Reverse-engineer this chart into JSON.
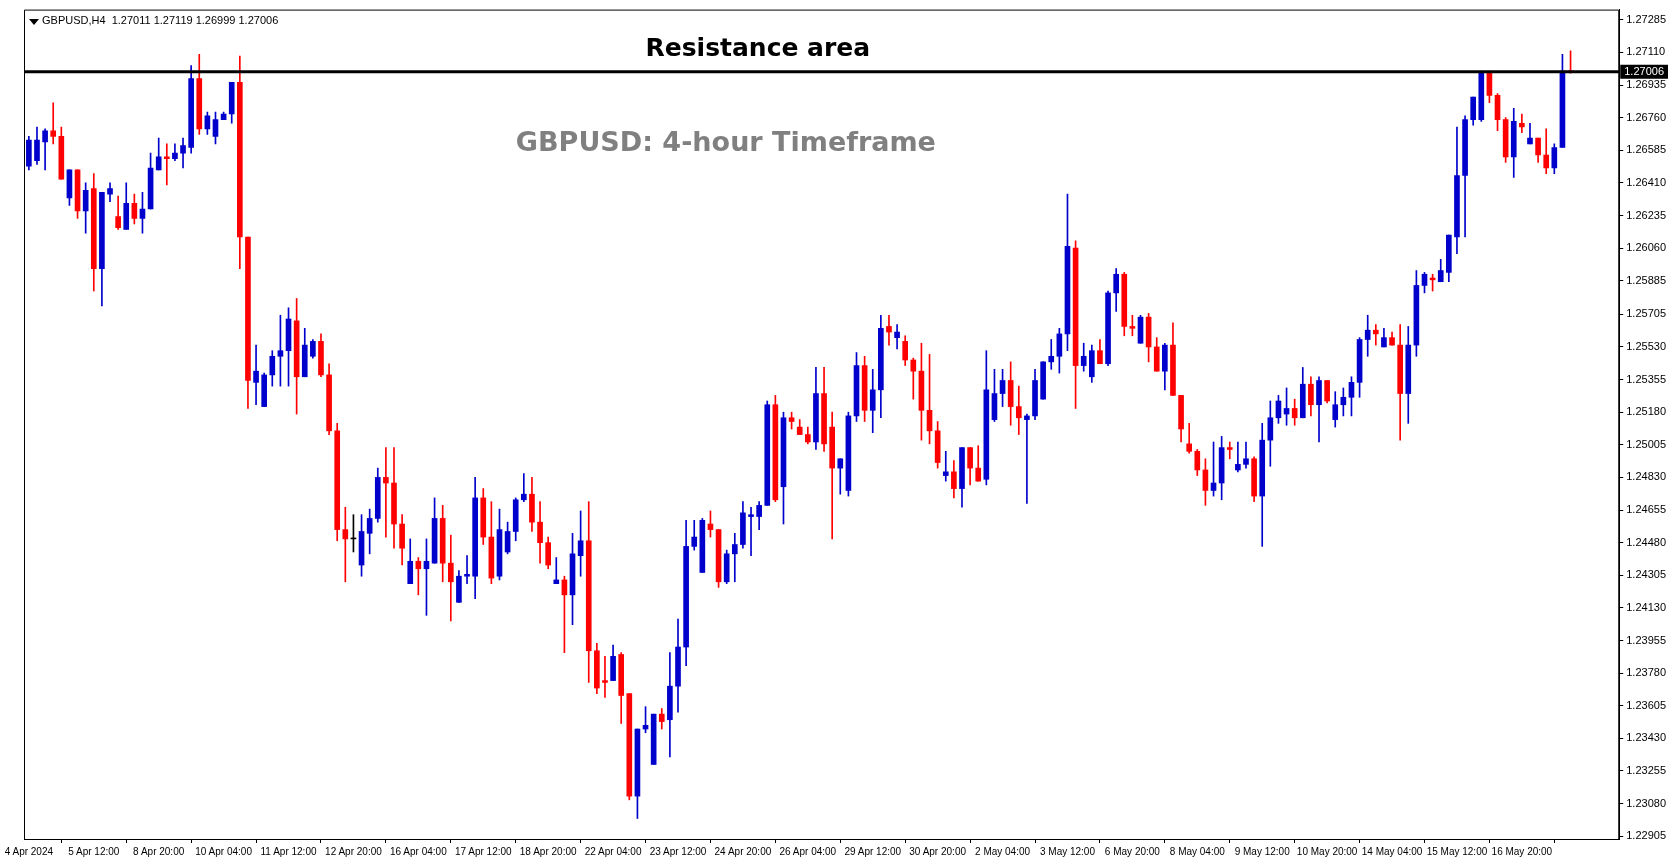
{
  "chart_data": {
    "type": "candlestick",
    "title": "GBPUSD: 4-hour Timeframe",
    "subtitle": "GBPUSD,H4  1.27011 1.27119 1.26999 1.27006",
    "categories": [
      "4 Apr 2024",
      null,
      null,
      null,
      null,
      null,
      null,
      null,
      "5 Apr 12:00",
      null,
      null,
      null,
      null,
      null,
      null,
      null,
      "8 Apr 20:00",
      null,
      null,
      null,
      null,
      null,
      null,
      null,
      "10 Apr 04:00",
      null,
      null,
      null,
      null,
      null,
      null,
      null,
      "11 Apr 12:00",
      null,
      null,
      null,
      null,
      null,
      null,
      null,
      "12 Apr 20:00",
      null,
      null,
      null,
      null,
      null,
      null,
      null,
      "16 Apr 04:00",
      null,
      null,
      null,
      null,
      null,
      null,
      null,
      "17 Apr 12:00",
      null,
      null,
      null,
      null,
      null,
      null,
      null,
      "18 Apr 20:00",
      null,
      null,
      null,
      null,
      null,
      null,
      null,
      "22 Apr 04:00",
      null,
      null,
      null,
      null,
      null,
      null,
      null,
      "23 Apr 12:00",
      null,
      null,
      null,
      null,
      null,
      null,
      null,
      "24 Apr 20:00",
      null,
      null,
      null,
      null,
      null,
      null,
      null,
      "26 Apr 04:00",
      null,
      null,
      null,
      null,
      null,
      null,
      null,
      "29 Apr 12:00",
      null,
      null,
      null,
      null,
      null,
      null,
      null,
      "30 Apr 20:00",
      null,
      null,
      null,
      null,
      null,
      null,
      null,
      "2 May 04:00",
      null,
      null,
      null,
      null,
      null,
      null,
      null,
      "3 May 12:00",
      null,
      null,
      null,
      null,
      null,
      null,
      null,
      "6 May 20:00",
      null,
      null,
      null,
      null,
      null,
      null,
      null,
      "8 May 04:00",
      null,
      null,
      null,
      null,
      null,
      null,
      null,
      "9 May 12:00",
      null,
      null,
      null,
      null,
      null,
      null,
      null,
      "10 May 20:00",
      null,
      null,
      null,
      null,
      null,
      null,
      null,
      "14 May 04:00",
      null,
      null,
      null,
      null,
      null,
      null,
      null,
      "15 May 12:00",
      null,
      null,
      null,
      null,
      null,
      null,
      null,
      "16 May 20:00",
      null,
      null,
      null,
      null,
      null,
      null
    ],
    "ohlc": [
      [
        1.265,
        1.2666,
        1.2648,
        1.2664
      ],
      [
        1.2653,
        1.2671,
        1.2651,
        1.2664
      ],
      [
        1.2663,
        1.267,
        1.2648,
        1.2669
      ],
      [
        1.2669,
        1.2684,
        1.2662,
        1.2666
      ],
      [
        1.2666,
        1.2671,
        1.2643,
        1.2643
      ],
      [
        1.2633,
        1.2648,
        1.2629,
        1.2648
      ],
      [
        1.2648,
        1.2648,
        1.2622,
        1.2626
      ],
      [
        1.2626,
        1.2641,
        1.2614,
        1.2637
      ],
      [
        1.2638,
        1.2646,
        1.2583,
        1.2595
      ],
      [
        1.2595,
        1.2636,
        1.2575,
        1.2636
      ],
      [
        1.2635,
        1.2641,
        1.2631,
        1.2638
      ],
      [
        1.2623,
        1.2634,
        1.2616,
        1.2617
      ],
      [
        1.2616,
        1.2641,
        1.2616,
        1.263
      ],
      [
        1.263,
        1.2635,
        1.2619,
        1.2622
      ],
      [
        1.2622,
        1.2636,
        1.2614,
        1.2627
      ],
      [
        1.2627,
        1.2657,
        1.2627,
        1.2649
      ],
      [
        1.2648,
        1.2665,
        1.2648,
        1.2655
      ],
      [
        1.2655,
        1.2662,
        1.264,
        1.2654
      ],
      [
        1.2654,
        1.2662,
        1.2653,
        1.2657
      ],
      [
        1.2657,
        1.2665,
        1.2649,
        1.2661
      ],
      [
        1.266,
        1.2704,
        1.2657,
        1.2697
      ],
      [
        1.2697,
        1.271,
        1.2667,
        1.267
      ],
      [
        1.267,
        1.2679,
        1.2667,
        1.2677
      ],
      [
        1.2666,
        1.2679,
        1.2662,
        1.2675
      ],
      [
        1.2675,
        1.2679,
        1.2675,
        1.2678
      ],
      [
        1.2678,
        1.2695,
        1.2673,
        1.2695
      ],
      [
        1.2695,
        1.2709,
        1.2595,
        1.2612
      ],
      [
        1.2612,
        1.2612,
        1.252,
        1.2535
      ],
      [
        1.2534,
        1.2554,
        1.2522,
        1.254
      ],
      [
        1.2521,
        1.2539,
        1.2521,
        1.2538
      ],
      [
        1.2538,
        1.2551,
        1.2532,
        1.2548
      ],
      [
        1.2548,
        1.257,
        1.2532,
        1.2551
      ],
      [
        1.2551,
        1.2574,
        1.2532,
        1.2568
      ],
      [
        1.2567,
        1.2579,
        1.2517,
        1.2537
      ],
      [
        1.2537,
        1.2563,
        1.2537,
        1.2554
      ],
      [
        1.2548,
        1.2557,
        1.2547,
        1.2556
      ],
      [
        1.2556,
        1.256,
        1.2537,
        1.2538
      ],
      [
        1.2538,
        1.2544,
        1.2506,
        1.2508
      ],
      [
        1.2508,
        1.2512,
        1.2449,
        1.2455
      ],
      [
        1.2455,
        1.2467,
        1.2427,
        1.245
      ],
      [
        1.245,
        1.2463,
        1.2443,
        1.245
      ],
      [
        1.2436,
        1.2463,
        1.243,
        1.2454
      ],
      [
        1.2453,
        1.2466,
        1.2442,
        1.2461
      ],
      [
        1.2461,
        1.2488,
        1.2459,
        1.2483
      ],
      [
        1.2483,
        1.2499,
        1.2451,
        1.248
      ],
      [
        1.248,
        1.2499,
        1.2445,
        1.2458
      ],
      [
        1.2458,
        1.2463,
        1.2436,
        1.2445
      ],
      [
        1.2426,
        1.245,
        1.2426,
        1.2438
      ],
      [
        1.2438,
        1.244,
        1.242,
        1.2434
      ],
      [
        1.2434,
        1.245,
        1.2409,
        1.2438
      ],
      [
        1.2437,
        1.2472,
        1.2437,
        1.2461
      ],
      [
        1.2461,
        1.2468,
        1.2427,
        1.2437
      ],
      [
        1.2437,
        1.2452,
        1.2406,
        1.2427
      ],
      [
        1.2416,
        1.2433,
        1.2416,
        1.243
      ],
      [
        1.243,
        1.2441,
        1.2426,
        1.2431
      ],
      [
        1.243,
        1.2483,
        1.2418,
        1.2472
      ],
      [
        1.2472,
        1.2477,
        1.2447,
        1.2451
      ],
      [
        1.2451,
        1.247,
        1.2426,
        1.2429
      ],
      [
        1.243,
        1.2466,
        1.2428,
        1.2455
      ],
      [
        1.2443,
        1.2459,
        1.2442,
        1.2454
      ],
      [
        1.2454,
        1.2472,
        1.2449,
        1.2471
      ],
      [
        1.2471,
        1.2485,
        1.247,
        1.2474
      ],
      [
        1.2474,
        1.2483,
        1.2454,
        1.2459
      ],
      [
        1.2459,
        1.247,
        1.2437,
        1.2448
      ],
      [
        1.2448,
        1.2451,
        1.2434,
        1.2436
      ],
      [
        1.2426,
        1.244,
        1.2426,
        1.2428
      ],
      [
        1.2428,
        1.243,
        1.2389,
        1.242
      ],
      [
        1.242,
        1.2453,
        1.2404,
        1.2442
      ],
      [
        1.2441,
        1.2465,
        1.243,
        1.2449
      ],
      [
        1.2449,
        1.247,
        1.2373,
        1.239
      ],
      [
        1.239,
        1.2394,
        1.2367,
        1.237
      ],
      [
        1.2374,
        1.2387,
        1.2365,
        1.2373
      ],
      [
        1.2374,
        1.2393,
        1.2374,
        1.2387
      ],
      [
        1.2388,
        1.2389,
        1.2351,
        1.2366
      ],
      [
        1.2367,
        1.2367,
        1.231,
        1.2312
      ],
      [
        1.2312,
        1.2348,
        1.23,
        1.2348
      ],
      [
        1.2348,
        1.236,
        1.2346,
        1.235
      ],
      [
        1.2329,
        1.2356,
        1.2329,
        1.2356
      ],
      [
        1.2356,
        1.2359,
        1.2348,
        1.2352
      ],
      [
        1.2353,
        1.2389,
        1.2333,
        1.2371
      ],
      [
        1.2371,
        1.2407,
        1.2357,
        1.2392
      ],
      [
        1.2392,
        1.246,
        1.2382,
        1.2446
      ],
      [
        1.2446,
        1.246,
        1.2444,
        1.2451
      ],
      [
        1.2432,
        1.2461,
        1.2432,
        1.246
      ],
      [
        1.2458,
        1.2465,
        1.2451,
        1.2455
      ],
      [
        1.2455,
        1.2455,
        1.2424,
        1.2427
      ],
      [
        1.2427,
        1.2444,
        1.2426,
        1.2442
      ],
      [
        1.2442,
        1.2453,
        1.2427,
        1.2447
      ],
      [
        1.2447,
        1.247,
        1.2445,
        1.2464
      ],
      [
        1.2462,
        1.2467,
        1.2441,
        1.2463
      ],
      [
        1.2462,
        1.247,
        1.2455,
        1.2468
      ],
      [
        1.2468,
        1.2524,
        1.2468,
        1.2522
      ],
      [
        1.2522,
        1.2527,
        1.247,
        1.2471
      ],
      [
        1.2478,
        1.2518,
        1.2458,
        1.2515
      ],
      [
        1.2515,
        1.2518,
        1.2509,
        1.2513
      ],
      [
        1.251,
        1.2514,
        1.2506,
        1.2506
      ],
      [
        1.2506,
        1.251,
        1.2501,
        1.2502
      ],
      [
        1.2502,
        1.2542,
        1.2498,
        1.2528
      ],
      [
        1.2528,
        1.2542,
        1.2497,
        1.2501
      ],
      [
        1.251,
        1.2518,
        1.245,
        1.2488
      ],
      [
        1.2488,
        1.2493,
        1.2474,
        1.2493
      ],
      [
        1.2476,
        1.2518,
        1.2473,
        1.2516
      ],
      [
        1.2516,
        1.255,
        1.2513,
        1.2543
      ],
      [
        1.2543,
        1.2548,
        1.2513,
        1.2519
      ],
      [
        1.2519,
        1.2541,
        1.2507,
        1.253
      ],
      [
        1.253,
        1.257,
        1.2515,
        1.2563
      ],
      [
        1.2564,
        1.257,
        1.2554,
        1.2561
      ],
      [
        1.2558,
        1.2565,
        1.2552,
        1.2561
      ],
      [
        1.2556,
        1.2559,
        1.2543,
        1.2546
      ],
      [
        1.2546,
        1.2547,
        1.2525,
        1.254
      ],
      [
        1.254,
        1.2555,
        1.2503,
        1.2519
      ],
      [
        1.2519,
        1.2549,
        1.2501,
        1.2508
      ],
      [
        1.2508,
        1.2513,
        1.2488,
        1.2491
      ],
      [
        1.2484,
        1.2497,
        1.2481,
        1.2486
      ],
      [
        1.2486,
        1.2492,
        1.2472,
        1.2477
      ],
      [
        1.2477,
        1.2499,
        1.2467,
        1.2499
      ],
      [
        1.2499,
        1.2499,
        1.2479,
        1.2488
      ],
      [
        1.2488,
        1.25,
        1.2481,
        1.2481
      ],
      [
        1.2482,
        1.2551,
        1.2479,
        1.253
      ],
      [
        1.2514,
        1.2541,
        1.2513,
        1.2528
      ],
      [
        1.2528,
        1.2541,
        1.2521,
        1.2535
      ],
      [
        1.2535,
        1.2545,
        1.2511,
        1.2521
      ],
      [
        1.2521,
        1.2532,
        1.2506,
        1.2515
      ],
      [
        1.2514,
        1.2517,
        1.2469,
        1.2516
      ],
      [
        1.2516,
        1.2541,
        1.2514,
        1.2535
      ],
      [
        1.2525,
        1.2545,
        1.2525,
        1.2545
      ],
      [
        1.2545,
        1.2557,
        1.2541,
        1.2548
      ],
      [
        1.2548,
        1.2563,
        1.2539,
        1.256
      ],
      [
        1.256,
        1.2635,
        1.2551,
        1.2607
      ],
      [
        1.2606,
        1.261,
        1.252,
        1.2543
      ],
      [
        1.2543,
        1.2555,
        1.254,
        1.2548
      ],
      [
        1.2537,
        1.2554,
        1.2534,
        1.2551
      ],
      [
        1.2551,
        1.2557,
        1.2544,
        1.2544
      ],
      [
        1.2544,
        1.2583,
        1.2543,
        1.2582
      ],
      [
        1.2582,
        1.2595,
        1.2572,
        1.2592
      ],
      [
        1.2592,
        1.2593,
        1.2559,
        1.2564
      ],
      [
        1.2564,
        1.257,
        1.2559,
        1.2563
      ],
      [
        1.2555,
        1.257,
        1.2555,
        1.2569
      ],
      [
        1.2569,
        1.2571,
        1.2545,
        1.2553
      ],
      [
        1.2553,
        1.2558,
        1.254,
        1.254
      ],
      [
        1.254,
        1.2555,
        1.253,
        1.2554
      ],
      [
        1.2554,
        1.2566,
        1.2527,
        1.2527
      ],
      [
        1.2527,
        1.2527,
        1.2502,
        1.2509
      ],
      [
        1.2501,
        1.2512,
        1.2496,
        1.2497
      ],
      [
        1.2497,
        1.2498,
        1.2484,
        1.2487
      ],
      [
        1.2487,
        1.2493,
        1.2468,
        1.2476
      ],
      [
        1.2476,
        1.2502,
        1.2473,
        1.248
      ],
      [
        1.248,
        1.2505,
        1.2471,
        1.2499
      ],
      [
        1.2499,
        1.2502,
        1.2493,
        1.2498
      ],
      [
        1.2487,
        1.2502,
        1.2486,
        1.249
      ],
      [
        1.249,
        1.2502,
        1.2488,
        1.2493
      ],
      [
        1.2493,
        1.2494,
        1.247,
        1.2473
      ],
      [
        1.2473,
        1.2512,
        1.2446,
        1.2503
      ],
      [
        1.2503,
        1.2524,
        1.2489,
        1.2515
      ],
      [
        1.2515,
        1.2527,
        1.2512,
        1.2524
      ],
      [
        1.2517,
        1.2531,
        1.2511,
        1.252
      ],
      [
        1.252,
        1.2525,
        1.2511,
        1.2515
      ],
      [
        1.2515,
        1.2542,
        1.2515,
        1.2533
      ],
      [
        1.2533,
        1.2537,
        1.2516,
        1.2522
      ],
      [
        1.2522,
        1.2537,
        1.2502,
        1.2535
      ],
      [
        1.2535,
        1.2535,
        1.2523,
        1.2524
      ],
      [
        1.2514,
        1.2529,
        1.251,
        1.2522
      ],
      [
        1.2522,
        1.2531,
        1.2516,
        1.2526
      ],
      [
        1.2526,
        1.2537,
        1.2516,
        1.2534
      ],
      [
        1.2534,
        1.2558,
        1.2526,
        1.2557
      ],
      [
        1.2557,
        1.257,
        1.2548,
        1.2562
      ],
      [
        1.2562,
        1.2565,
        1.2554,
        1.256
      ],
      [
        1.2553,
        1.2563,
        1.2553,
        1.2558
      ],
      [
        1.2558,
        1.2561,
        1.2554,
        1.2554
      ],
      [
        1.2554,
        1.2565,
        1.2503,
        1.2528
      ],
      [
        1.2528,
        1.2564,
        1.2512,
        1.2554
      ],
      [
        1.2554,
        1.2594,
        1.2548,
        1.2586
      ],
      [
        1.2586,
        1.2593,
        1.2582,
        1.2592
      ],
      [
        1.259,
        1.2592,
        1.2583,
        1.2589
      ],
      [
        1.2588,
        1.26,
        1.2588,
        1.2594
      ],
      [
        1.2593,
        1.2613,
        1.2588,
        1.2613
      ],
      [
        1.2612,
        1.2671,
        1.2603,
        1.2645
      ],
      [
        1.2645,
        1.2677,
        1.2612,
        1.2675
      ],
      [
        1.2675,
        1.2687,
        1.2672,
        1.2687
      ],
      [
        1.2675,
        1.2701,
        1.2674,
        1.27
      ],
      [
        1.27,
        1.2701,
        1.2684,
        1.2688
      ],
      [
        1.2688,
        1.2689,
        1.2669,
        1.2675
      ],
      [
        1.2675,
        1.2676,
        1.2652,
        1.2655
      ],
      [
        1.2655,
        1.2681,
        1.2644,
        1.2674
      ],
      [
        1.2673,
        1.2678,
        1.2668,
        1.2671
      ],
      [
        1.2662,
        1.2673,
        1.2662,
        1.2665
      ],
      [
        1.2665,
        1.2665,
        1.2652,
        1.2656
      ],
      [
        1.2656,
        1.267,
        1.2646,
        1.2649
      ],
      [
        1.2649,
        1.2662,
        1.2646,
        1.266
      ],
      [
        1.266,
        1.271,
        1.266,
        1.2701
      ],
      [
        1.27011,
        1.27119,
        1.26999,
        1.27006
      ]
    ],
    "colors": [
      "#0000cd",
      "#0000cd",
      "#0000cd",
      "#ff0000",
      "#ff0000",
      "#0000cd",
      "#ff0000",
      "#0000cd",
      "#ff0000",
      "#0000cd",
      "#0000cd",
      "#ff0000",
      "#0000cd",
      "#ff0000",
      "#0000cd",
      "#0000cd",
      "#0000cd",
      "#ff0000",
      "#0000cd",
      "#0000cd",
      "#0000cd",
      "#ff0000",
      "#0000cd",
      "#0000cd",
      "#0000cd",
      "#0000cd",
      "#ff0000",
      "#ff0000",
      "#0000cd",
      "#0000cd",
      "#0000cd",
      "#0000cd",
      "#0000cd",
      "#ff0000",
      "#0000cd",
      "#0000cd",
      "#ff0000",
      "#ff0000",
      "#ff0000",
      "#ff0000",
      "#000000",
      "#0000cd",
      "#0000cd",
      "#0000cd",
      "#ff0000",
      "#ff0000",
      "#ff0000",
      "#0000cd",
      "#ff0000",
      "#0000cd",
      "#0000cd",
      "#ff0000",
      "#ff0000",
      "#0000cd",
      "#0000cd",
      "#0000cd",
      "#ff0000",
      "#ff0000",
      "#0000cd",
      "#0000cd",
      "#0000cd",
      "#0000cd",
      "#ff0000",
      "#ff0000",
      "#ff0000",
      "#0000cd",
      "#ff0000",
      "#0000cd",
      "#0000cd",
      "#ff0000",
      "#ff0000",
      "#ff0000",
      "#0000cd",
      "#ff0000",
      "#ff0000",
      "#0000cd",
      "#0000cd",
      "#0000cd",
      "#ff0000",
      "#0000cd",
      "#0000cd",
      "#0000cd",
      "#0000cd",
      "#0000cd",
      "#ff0000",
      "#ff0000",
      "#0000cd",
      "#0000cd",
      "#0000cd",
      "#0000cd",
      "#0000cd",
      "#0000cd",
      "#ff0000",
      "#0000cd",
      "#ff0000",
      "#ff0000",
      "#ff0000",
      "#0000cd",
      "#ff0000",
      "#ff0000",
      "#0000cd",
      "#0000cd",
      "#0000cd",
      "#ff0000",
      "#0000cd",
      "#0000cd",
      "#ff0000",
      "#0000cd",
      "#ff0000",
      "#ff0000",
      "#ff0000",
      "#ff0000",
      "#ff0000",
      "#0000cd",
      "#ff0000",
      "#0000cd",
      "#ff0000",
      "#ff0000",
      "#0000cd",
      "#0000cd",
      "#0000cd",
      "#ff0000",
      "#ff0000",
      "#0000cd",
      "#0000cd",
      "#0000cd",
      "#0000cd",
      "#0000cd",
      "#0000cd",
      "#ff0000",
      "#0000cd",
      "#0000cd",
      "#ff0000",
      "#0000cd",
      "#0000cd",
      "#ff0000",
      "#ff0000",
      "#0000cd",
      "#ff0000",
      "#ff0000",
      "#0000cd",
      "#ff0000",
      "#ff0000",
      "#ff0000",
      "#ff0000",
      "#ff0000",
      "#0000cd",
      "#0000cd",
      "#ff0000",
      "#0000cd",
      "#0000cd",
      "#ff0000",
      "#0000cd",
      "#0000cd",
      "#0000cd",
      "#0000cd",
      "#ff0000",
      "#0000cd",
      "#ff0000",
      "#0000cd",
      "#ff0000",
      "#0000cd",
      "#0000cd",
      "#0000cd",
      "#0000cd",
      "#0000cd",
      "#ff0000",
      "#0000cd",
      "#ff0000",
      "#ff0000",
      "#0000cd",
      "#0000cd",
      "#0000cd",
      "#ff0000",
      "#0000cd",
      "#0000cd",
      "#0000cd",
      "#0000cd",
      "#0000cd",
      "#0000cd",
      "#ff0000",
      "#ff0000",
      "#ff0000",
      "#0000cd",
      "#ff0000",
      "#0000cd",
      "#ff0000",
      "#ff0000",
      "#0000cd",
      "#0000cd",
      "#ff0000"
    ],
    "ylim": [
      1.2289,
      1.2734
    ],
    "yticks": [
      {
        "value": 1.27285,
        "label": "1.27285"
      },
      {
        "value": 1.2711,
        "label": "1.27110"
      },
      {
        "value": 1.26935,
        "label": "1.26935"
      },
      {
        "value": 1.2676,
        "label": "1.26760"
      },
      {
        "value": 1.26585,
        "label": "1.26585"
      },
      {
        "value": 1.2641,
        "label": "1.26410"
      },
      {
        "value": 1.26235,
        "label": "1.26235"
      },
      {
        "value": 1.2606,
        "label": "1.26060"
      },
      {
        "value": 1.25885,
        "label": "1.25885"
      },
      {
        "value": 1.25705,
        "label": "1.25705"
      },
      {
        "value": 1.2553,
        "label": "1.25530"
      },
      {
        "value": 1.25355,
        "label": "1.25355"
      },
      {
        "value": 1.2518,
        "label": "1.25180"
      },
      {
        "value": 1.25005,
        "label": "1.25005"
      },
      {
        "value": 1.2483,
        "label": "1.24830"
      },
      {
        "value": 1.24655,
        "label": "1.24655"
      },
      {
        "value": 1.2448,
        "label": "1.24480"
      },
      {
        "value": 1.24305,
        "label": "1.24305"
      },
      {
        "value": 1.2413,
        "label": "1.24130"
      },
      {
        "value": 1.23955,
        "label": "1.23955"
      },
      {
        "value": 1.2378,
        "label": "1.23780"
      },
      {
        "value": 1.23605,
        "label": "1.23605"
      },
      {
        "value": 1.2343,
        "label": "1.23430"
      },
      {
        "value": 1.23255,
        "label": "1.23255"
      },
      {
        "value": 1.2308,
        "label": "1.23080"
      },
      {
        "value": 1.22905,
        "label": "1.22905"
      }
    ],
    "ref_lines": [
      {
        "axis": "y",
        "value": 1.27006,
        "label": "Resistance area",
        "color": "#000000"
      }
    ],
    "annotations": [
      "1.27006"
    ]
  }
}
